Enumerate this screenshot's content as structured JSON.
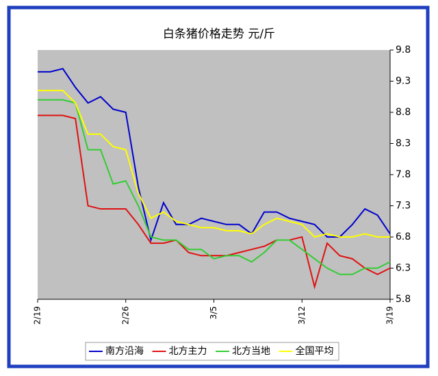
{
  "chart_data": {
    "type": "line",
    "title": "白条猪价格走势    元/斤",
    "categories": [
      "2/19",
      null,
      null,
      null,
      null,
      null,
      null,
      "2/26",
      null,
      null,
      null,
      null,
      null,
      null,
      "3/5",
      null,
      null,
      null,
      null,
      null,
      null,
      "3/12",
      null,
      null,
      null,
      null,
      null,
      null,
      "3/19"
    ],
    "series": [
      {
        "name": "南方沿海",
        "color": "#0000cc",
        "values": [
          9.45,
          9.45,
          9.5,
          9.2,
          8.95,
          9.05,
          8.85,
          8.8,
          7.6,
          6.75,
          7.35,
          7.0,
          7.0,
          7.1,
          7.05,
          7.0,
          7.0,
          6.85,
          7.2,
          7.2,
          7.1,
          7.05,
          7.0,
          6.8,
          6.8,
          7.0,
          7.25,
          7.15,
          6.85
        ]
      },
      {
        "name": "北方主力",
        "color": "#e01010",
        "values": [
          8.75,
          8.75,
          8.75,
          8.7,
          7.3,
          7.25,
          7.25,
          7.25,
          7.0,
          6.7,
          6.7,
          6.75,
          6.55,
          6.5,
          6.5,
          6.5,
          6.55,
          6.6,
          6.65,
          6.75,
          6.75,
          6.8,
          6.0,
          6.7,
          6.5,
          6.45,
          6.3,
          6.2,
          6.3
        ]
      },
      {
        "name": "北方当地",
        "color": "#33cc33",
        "values": [
          9.0,
          9.0,
          9.0,
          8.95,
          8.2,
          8.2,
          7.65,
          7.7,
          7.3,
          6.8,
          6.75,
          6.75,
          6.6,
          6.6,
          6.45,
          6.5,
          6.5,
          6.4,
          6.55,
          6.75,
          6.75,
          6.6,
          6.45,
          6.3,
          6.2,
          6.2,
          6.3,
          6.3,
          6.4
        ]
      },
      {
        "name": "全国平均",
        "color": "#ffff00",
        "values": [
          9.15,
          9.15,
          9.15,
          8.95,
          8.45,
          8.45,
          8.25,
          8.2,
          7.5,
          7.1,
          7.2,
          7.05,
          7.0,
          6.95,
          6.95,
          6.9,
          6.9,
          6.85,
          7.0,
          7.1,
          7.05,
          7.0,
          6.8,
          6.85,
          6.8,
          6.8,
          6.85,
          6.8,
          6.8
        ]
      }
    ],
    "ylim": [
      5.8,
      9.8
    ],
    "yticks": [
      5.8,
      6.3,
      6.8,
      7.3,
      7.8,
      8.3,
      8.8,
      9.3,
      9.8
    ],
    "grid": false
  }
}
